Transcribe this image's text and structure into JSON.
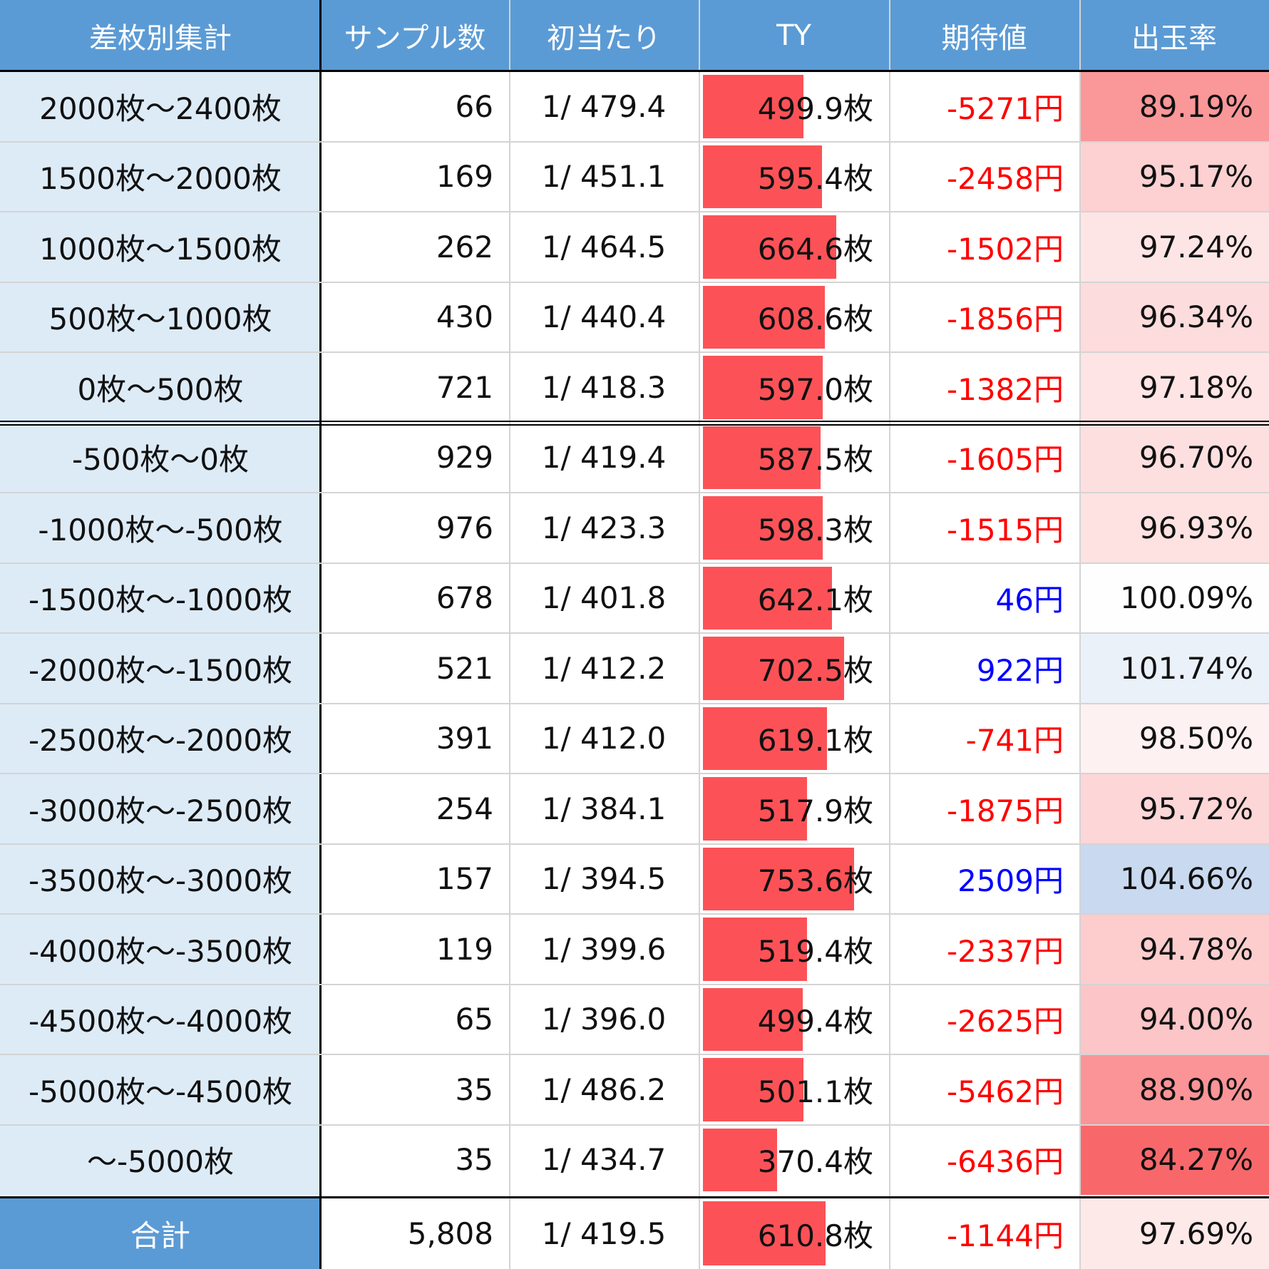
{
  "header": {
    "category": "差枚別集計",
    "samples": "サンプル数",
    "first_hit": "初当たり",
    "ty": "TY",
    "expected": "期待値",
    "payout": "出玉率"
  },
  "colors": {
    "header_bg": "#5b9bd5",
    "label_bg": "#ddebf7",
    "ty_bar": "#fc5257",
    "negative_text": "#ff0000",
    "positive_text": "#0000ff",
    "grid": "#d4d4d4",
    "border": "#000000"
  },
  "rows": [
    {
      "label": "2000枚～2400枚",
      "samples": "66",
      "first_hit": "1/ 479.4",
      "ty": "499.9枚",
      "ty_value": 499.9,
      "expected": "-5271円",
      "payout": "89.19%",
      "payout_value": 89.19
    },
    {
      "label": "1500枚～2000枚",
      "samples": "169",
      "first_hit": "1/ 451.1",
      "ty": "595.4枚",
      "ty_value": 595.4,
      "expected": "-2458円",
      "payout": "95.17%",
      "payout_value": 95.17
    },
    {
      "label": "1000枚～1500枚",
      "samples": "262",
      "first_hit": "1/ 464.5",
      "ty": "664.6枚",
      "ty_value": 664.6,
      "expected": "-1502円",
      "payout": "97.24%",
      "payout_value": 97.24
    },
    {
      "label": "500枚～1000枚",
      "samples": "430",
      "first_hit": "1/ 440.4",
      "ty": "608.6枚",
      "ty_value": 608.6,
      "expected": "-1856円",
      "payout": "96.34%",
      "payout_value": 96.34
    },
    {
      "label": "0枚～500枚",
      "samples": "721",
      "first_hit": "1/ 418.3",
      "ty": "597.0枚",
      "ty_value": 597.0,
      "expected": "-1382円",
      "payout": "97.18%",
      "payout_value": 97.18
    },
    {
      "label": "-500枚～0枚",
      "samples": "929",
      "first_hit": "1/ 419.4",
      "ty": "587.5枚",
      "ty_value": 587.5,
      "expected": "-1605円",
      "payout": "96.70%",
      "payout_value": 96.7
    },
    {
      "label": "-1000枚～-500枚",
      "samples": "976",
      "first_hit": "1/ 423.3",
      "ty": "598.3枚",
      "ty_value": 598.3,
      "expected": "-1515円",
      "payout": "96.93%",
      "payout_value": 96.93
    },
    {
      "label": "-1500枚～-1000枚",
      "samples": "678",
      "first_hit": "1/ 401.8",
      "ty": "642.1枚",
      "ty_value": 642.1,
      "expected": "46円",
      "payout": "100.09%",
      "payout_value": 100.09
    },
    {
      "label": "-2000枚～-1500枚",
      "samples": "521",
      "first_hit": "1/ 412.2",
      "ty": "702.5枚",
      "ty_value": 702.5,
      "expected": "922円",
      "payout": "101.74%",
      "payout_value": 101.74
    },
    {
      "label": "-2500枚～-2000枚",
      "samples": "391",
      "first_hit": "1/ 412.0",
      "ty": "619.1枚",
      "ty_value": 619.1,
      "expected": "-741円",
      "payout": "98.50%",
      "payout_value": 98.5
    },
    {
      "label": "-3000枚～-2500枚",
      "samples": "254",
      "first_hit": "1/ 384.1",
      "ty": "517.9枚",
      "ty_value": 517.9,
      "expected": "-1875円",
      "payout": "95.72%",
      "payout_value": 95.72
    },
    {
      "label": "-3500枚～-3000枚",
      "samples": "157",
      "first_hit": "1/ 394.5",
      "ty": "753.6枚",
      "ty_value": 753.6,
      "expected": "2509円",
      "payout": "104.66%",
      "payout_value": 104.66
    },
    {
      "label": "-4000枚～-3500枚",
      "samples": "119",
      "first_hit": "1/ 399.6",
      "ty": "519.4枚",
      "ty_value": 519.4,
      "expected": "-2337円",
      "payout": "94.78%",
      "payout_value": 94.78
    },
    {
      "label": "-4500枚～-4000枚",
      "samples": "65",
      "first_hit": "1/ 396.0",
      "ty": "499.4枚",
      "ty_value": 499.4,
      "expected": "-2625円",
      "payout": "94.00%",
      "payout_value": 94.0
    },
    {
      "label": "-5000枚～-4500枚",
      "samples": "35",
      "first_hit": "1/ 486.2",
      "ty": "501.1枚",
      "ty_value": 501.1,
      "expected": "-5462円",
      "payout": "88.90%",
      "payout_value": 88.9
    },
    {
      "label": "～-5000枚",
      "samples": "35",
      "first_hit": "1/ 434.7",
      "ty": "370.4枚",
      "ty_value": 370.4,
      "expected": "-6436円",
      "payout": "84.27%",
      "payout_value": 84.27
    }
  ],
  "total": {
    "label": "合計",
    "samples": "5,808",
    "first_hit": "1/ 419.5",
    "ty": "610.8枚",
    "ty_value": 610.8,
    "expected": "-1144円",
    "payout": "97.69%",
    "payout_value": 97.69
  }
}
